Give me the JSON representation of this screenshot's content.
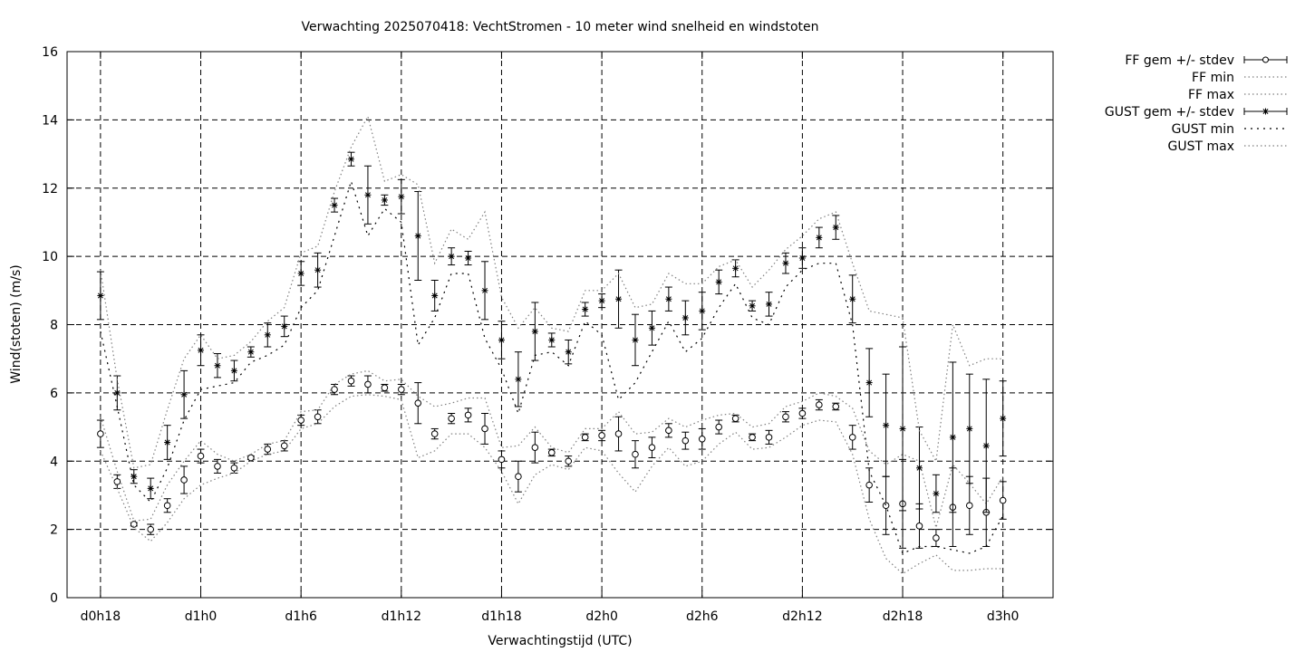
{
  "chart_data": {
    "type": "scatter",
    "title": "Verwachting 2025070418: VechtStromen - 10 meter wind snelheid en windstoten",
    "xlabel": "Verwachtingstijd (UTC)",
    "ylabel": "Wind(stoten) (m/s)",
    "xlim": [
      -2,
      57
    ],
    "ylim": [
      0,
      16
    ],
    "grid": true,
    "legend_position": "outside-top-right",
    "x_ticks": [
      {
        "x": 0,
        "label": "d0h18"
      },
      {
        "x": 6,
        "label": "d1h0"
      },
      {
        "x": 12,
        "label": "d1h6"
      },
      {
        "x": 18,
        "label": "d1h12"
      },
      {
        "x": 24,
        "label": "d1h18"
      },
      {
        "x": 30,
        "label": "d2h0"
      },
      {
        "x": 36,
        "label": "d2h6"
      },
      {
        "x": 42,
        "label": "d2h12"
      },
      {
        "x": 48,
        "label": "d2h18"
      },
      {
        "x": 54,
        "label": "d3h0"
      }
    ],
    "y_ticks": [
      0,
      2,
      4,
      6,
      8,
      10,
      12,
      14,
      16
    ],
    "x": [
      0,
      1,
      2,
      3,
      4,
      5,
      6,
      7,
      8,
      9,
      10,
      11,
      12,
      13,
      14,
      15,
      16,
      17,
      18,
      19,
      20,
      21,
      22,
      23,
      24,
      25,
      26,
      27,
      28,
      29,
      30,
      31,
      32,
      33,
      34,
      35,
      36,
      37,
      38,
      39,
      40,
      41,
      42,
      43,
      44,
      45,
      46,
      47,
      48,
      49,
      50,
      51,
      52,
      53,
      54
    ],
    "series": [
      {
        "name": "FF gem +/- stdev",
        "style": "errorbar-circle",
        "values": [
          4.8,
          3.4,
          2.15,
          2.0,
          2.7,
          3.45,
          4.15,
          3.85,
          3.8,
          4.1,
          4.35,
          4.45,
          5.2,
          5.3,
          6.1,
          6.35,
          6.25,
          6.15,
          6.1,
          5.7,
          4.8,
          5.25,
          5.35,
          4.95,
          4.05,
          3.55,
          4.4,
          4.25,
          4.0,
          4.7,
          4.75,
          4.8,
          4.2,
          4.4,
          4.9,
          4.6,
          4.65,
          5.0,
          5.25,
          4.7,
          4.7,
          5.3,
          5.4,
          5.65,
          5.6,
          4.7,
          3.3,
          2.7,
          2.75,
          2.1,
          1.75,
          2.65,
          2.7,
          2.5,
          2.85
        ],
        "err": [
          0.4,
          0.2,
          0.05,
          0.15,
          0.2,
          0.4,
          0.2,
          0.2,
          0.15,
          0.05,
          0.15,
          0.15,
          0.15,
          0.2,
          0.15,
          0.15,
          0.25,
          0.1,
          0.15,
          0.6,
          0.15,
          0.15,
          0.2,
          0.45,
          0.25,
          0.45,
          0.45,
          0.1,
          0.15,
          0.1,
          0.15,
          0.5,
          0.4,
          0.3,
          0.2,
          0.25,
          0.3,
          0.2,
          0.1,
          0.1,
          0.2,
          0.15,
          0.15,
          0.15,
          0.1,
          0.35,
          0.5,
          0.85,
          1.3,
          0.65,
          0.25,
          1.15,
          0.85,
          1.0,
          0.55
        ],
        "color": "#000000"
      },
      {
        "name": "FF min",
        "style": "dotted",
        "values": [
          4.3,
          3.2,
          2.05,
          1.65,
          2.2,
          2.9,
          3.3,
          3.5,
          3.65,
          4.0,
          4.2,
          4.3,
          4.95,
          5.1,
          5.6,
          5.9,
          5.95,
          5.9,
          5.8,
          4.1,
          4.3,
          4.8,
          4.8,
          4.4,
          3.7,
          2.75,
          3.6,
          3.9,
          3.75,
          4.4,
          4.3,
          3.65,
          3.1,
          3.85,
          4.4,
          3.85,
          4.0,
          4.5,
          4.85,
          4.35,
          4.4,
          4.7,
          5.05,
          5.2,
          5.15,
          4.2,
          2.3,
          1.15,
          0.7,
          1.0,
          1.25,
          0.8,
          0.8,
          0.85,
          0.85
        ],
        "color": "#808080"
      },
      {
        "name": "FF max",
        "style": "dotted",
        "values": [
          5.3,
          3.7,
          2.25,
          2.3,
          3.3,
          4.0,
          4.6,
          4.2,
          4.0,
          4.2,
          4.5,
          4.6,
          5.45,
          5.5,
          6.25,
          6.55,
          6.65,
          6.35,
          6.4,
          5.9,
          5.6,
          5.7,
          5.85,
          5.85,
          4.4,
          4.45,
          5.0,
          4.4,
          4.25,
          4.95,
          4.95,
          5.45,
          4.8,
          4.85,
          5.25,
          5.0,
          5.2,
          5.35,
          5.4,
          5.0,
          5.1,
          5.6,
          5.75,
          6.0,
          5.9,
          5.55,
          4.3,
          3.9,
          4.2,
          4.0,
          2.05,
          3.9,
          3.35,
          2.75,
          3.55
        ],
        "color": "#808080"
      },
      {
        "name": "GUST gem +/- stdev",
        "style": "errorbar-star",
        "values": [
          8.85,
          6.0,
          3.55,
          3.2,
          4.55,
          5.95,
          7.25,
          6.8,
          6.65,
          7.2,
          7.7,
          7.95,
          9.5,
          9.6,
          11.5,
          12.85,
          11.8,
          11.65,
          11.75,
          10.6,
          8.85,
          10.0,
          9.95,
          9.0,
          7.55,
          6.4,
          7.8,
          7.55,
          7.2,
          8.45,
          8.7,
          8.75,
          7.55,
          7.9,
          8.75,
          8.2,
          8.4,
          9.25,
          9.65,
          8.55,
          8.6,
          9.8,
          9.95,
          10.55,
          10.85,
          8.75,
          6.3,
          5.05,
          4.95,
          3.8,
          3.05,
          4.7,
          4.95,
          4.45,
          5.25
        ],
        "err": [
          0.7,
          0.5,
          0.2,
          0.3,
          0.5,
          0.7,
          0.45,
          0.35,
          0.3,
          0.15,
          0.35,
          0.3,
          0.35,
          0.5,
          0.2,
          0.2,
          0.85,
          0.15,
          0.5,
          1.3,
          0.45,
          0.25,
          0.2,
          0.85,
          0.55,
          0.8,
          0.85,
          0.2,
          0.35,
          0.2,
          0.2,
          0.85,
          0.75,
          0.5,
          0.35,
          0.5,
          0.55,
          0.35,
          0.25,
          0.15,
          0.35,
          0.3,
          0.3,
          0.3,
          0.35,
          0.7,
          1.0,
          1.5,
          2.4,
          1.2,
          0.55,
          2.2,
          1.6,
          1.95,
          1.1
        ],
        "color": "#000000"
      },
      {
        "name": "GUST min",
        "style": "dotted",
        "values": [
          7.8,
          5.6,
          3.3,
          2.8,
          3.8,
          5.2,
          6.1,
          6.2,
          6.3,
          6.9,
          7.1,
          7.4,
          8.5,
          9.0,
          10.6,
          12.2,
          10.6,
          11.4,
          11.0,
          7.4,
          8.2,
          9.5,
          9.5,
          7.6,
          6.7,
          5.4,
          7.1,
          7.2,
          6.8,
          8.1,
          7.7,
          5.8,
          6.3,
          7.2,
          8.1,
          7.2,
          7.6,
          8.5,
          9.2,
          8.2,
          8.0,
          9.1,
          9.6,
          9.8,
          9.8,
          8.0,
          3.7,
          2.7,
          1.3,
          1.5,
          1.5,
          1.4,
          1.3,
          1.5,
          2.4
        ],
        "color": "#000000"
      },
      {
        "name": "GUST max",
        "style": "dotted",
        "values": [
          9.6,
          6.4,
          3.8,
          3.9,
          5.5,
          7.0,
          7.7,
          7.0,
          7.1,
          7.5,
          8.1,
          8.5,
          10.1,
          10.3,
          11.9,
          13.2,
          14.1,
          12.2,
          12.4,
          12.1,
          9.8,
          10.8,
          10.5,
          11.3,
          8.8,
          7.9,
          8.5,
          7.9,
          7.8,
          9.0,
          9.0,
          9.5,
          8.5,
          8.6,
          9.5,
          9.2,
          9.2,
          9.7,
          9.9,
          9.1,
          9.6,
          10.2,
          10.6,
          11.1,
          11.3,
          9.8,
          8.4,
          8.3,
          8.2,
          4.9,
          4.0,
          8.0,
          6.8,
          7.0,
          7.0
        ],
        "color": "#808080"
      }
    ]
  }
}
